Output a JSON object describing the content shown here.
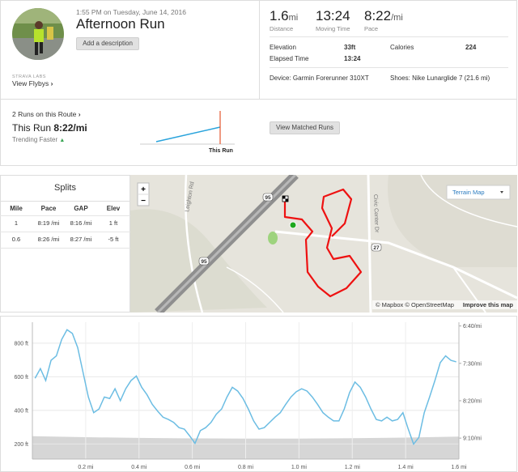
{
  "activity": {
    "time": "1:55 PM on Tuesday, June 14, 2016",
    "title": "Afternoon Run",
    "add_description": "Add a description",
    "labs": "STRAVA LABS",
    "flybys": "View Flybys",
    "stats": [
      {
        "value": "1.6",
        "unit": "mi",
        "label": "Distance"
      },
      {
        "value": "13:24",
        "label": "Moving Time"
      },
      {
        "value": "8:22",
        "unit": "/mi",
        "label": "Pace"
      }
    ],
    "details": [
      [
        "Elevation",
        "33ft"
      ],
      [
        "Calories",
        "224"
      ],
      [
        "Elapsed Time",
        "13:24"
      ]
    ],
    "device": "Device: Garmin Forerunner 310XT",
    "shoes": "Shoes: Nike Lunarglide 7 (21.6 mi)"
  },
  "route": {
    "runs": "2 Runs on this Route",
    "this_run": "This Run",
    "pace": "8:22/mi",
    "trend": "Trending Faster",
    "marker": "This Run",
    "button": "View Matched Runs"
  },
  "splits": {
    "title": "Splits",
    "columns": [
      "Mile",
      "Pace",
      "GAP",
      "Elev"
    ],
    "rows": [
      [
        "1",
        "8:19 /mi",
        "8:16 /mi",
        "1 ft"
      ],
      [
        "0.6",
        "8:26 /mi",
        "8:27 /mi",
        "-5 ft"
      ]
    ]
  },
  "map": {
    "layer": "Terrain Map",
    "zoom_in": "+",
    "zoom_out": "−",
    "roads": [
      "Leighton Rd",
      "Civic Center Dr"
    ],
    "shields": [
      "95",
      "95",
      "27"
    ],
    "attribution": "© Mapbox © OpenStreetMap",
    "improve": "Improve this map"
  },
  "profile": {
    "xlim": [
      0,
      1.6
    ],
    "ylim": [
      110,
      925
    ],
    "y2lim": [
      578,
      395
    ],
    "xticks": [
      {
        "value": 0.2,
        "label": "0.2 mi"
      },
      {
        "value": 0.4,
        "label": "0.4 mi"
      },
      {
        "value": 0.6,
        "label": "0.6 mi"
      },
      {
        "value": 0.8,
        "label": "0.8 mi"
      },
      {
        "value": 1.0,
        "label": "1.0 mi"
      },
      {
        "value": 1.2,
        "label": "1.2 mi"
      },
      {
        "value": 1.4,
        "label": "1.4 mi"
      },
      {
        "value": 1.6,
        "label": "1.6 mi"
      }
    ],
    "yticks": [
      {
        "value": 200,
        "label": "200 ft"
      },
      {
        "value": 400,
        "label": "400 ft"
      },
      {
        "value": 600,
        "label": "600 ft"
      },
      {
        "value": 800,
        "label": "800 ft"
      }
    ],
    "y2ticks": [
      {
        "value": 550,
        "label": "9:10/mi"
      },
      {
        "value": 500,
        "label": "8:20/mi"
      },
      {
        "value": 450,
        "label": "7:30/mi"
      },
      {
        "value": 400,
        "label": "6:40/mi"
      }
    ],
    "elevation": {
      "color": "#d6d6d6",
      "x": [
        0,
        0.2,
        0.4,
        0.6,
        0.8,
        1.0,
        1.2,
        1.4,
        1.6
      ],
      "values": [
        246,
        240,
        236,
        233,
        232,
        232,
        234,
        238,
        244
      ]
    },
    "pace": {
      "color": "#6cbde3",
      "x": [
        0.01,
        0.03,
        0.05,
        0.07,
        0.09,
        0.11,
        0.13,
        0.15,
        0.17,
        0.19,
        0.21,
        0.23,
        0.25,
        0.27,
        0.29,
        0.31,
        0.33,
        0.35,
        0.37,
        0.39,
        0.41,
        0.43,
        0.45,
        0.47,
        0.49,
        0.51,
        0.53,
        0.55,
        0.57,
        0.59,
        0.61,
        0.63,
        0.65,
        0.67,
        0.69,
        0.71,
        0.73,
        0.75,
        0.77,
        0.79,
        0.81,
        0.83,
        0.85,
        0.87,
        0.89,
        0.91,
        0.93,
        0.95,
        0.97,
        0.99,
        1.01,
        1.03,
        1.05,
        1.07,
        1.09,
        1.11,
        1.13,
        1.15,
        1.17,
        1.19,
        1.21,
        1.23,
        1.25,
        1.27,
        1.29,
        1.31,
        1.33,
        1.35,
        1.37,
        1.39,
        1.41,
        1.43,
        1.45,
        1.47,
        1.49,
        1.51,
        1.53,
        1.55,
        1.57,
        1.59
      ],
      "values": [
        470,
        457,
        473,
        446,
        440,
        418,
        405,
        410,
        429,
        462,
        495,
        516,
        511,
        495,
        497,
        484,
        500,
        484,
        473,
        467,
        482,
        492,
        505,
        514,
        522,
        525,
        529,
        536,
        538,
        547,
        557,
        540,
        536,
        529,
        518,
        511,
        495,
        482,
        487,
        497,
        511,
        527,
        538,
        536,
        529,
        522,
        516,
        505,
        495,
        488,
        484,
        487,
        495,
        505,
        516,
        522,
        527,
        527,
        511,
        489,
        475,
        482,
        495,
        511,
        525,
        527,
        522,
        527,
        525,
        516,
        538,
        558,
        549,
        516,
        495,
        473,
        449,
        440,
        446,
        448
      ]
    }
  }
}
